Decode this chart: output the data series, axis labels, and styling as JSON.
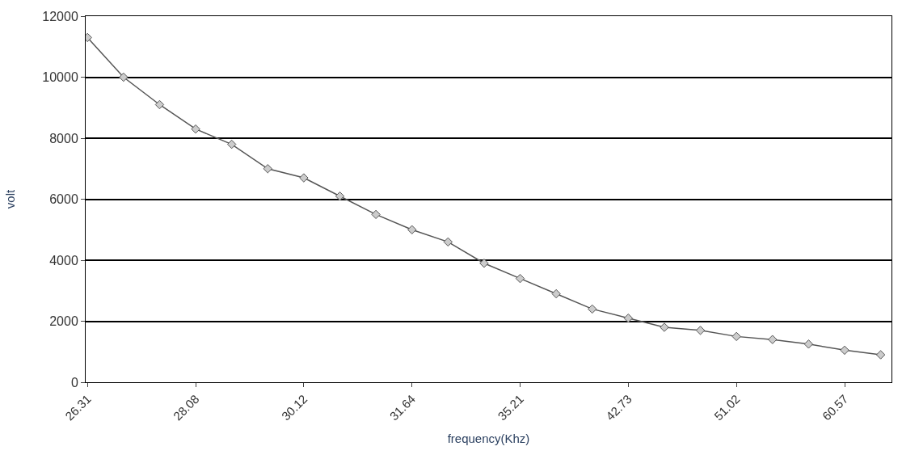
{
  "chart_data": {
    "type": "line",
    "xlabel": "frequency(Khz)",
    "ylabel": "volt",
    "categories": [
      "26.31",
      null,
      null,
      "28.08",
      null,
      null,
      "30.12",
      null,
      null,
      "31.64",
      null,
      null,
      "35.21",
      null,
      null,
      "42.73",
      null,
      null,
      "51.02",
      null,
      null,
      "60.57",
      null
    ],
    "series": [
      {
        "color": "#555555",
        "values": [
          11300,
          10000,
          9100,
          8300,
          7800,
          7000,
          6700,
          6100,
          5500,
          5000,
          4600,
          3900,
          3400,
          2900,
          2400,
          2100,
          1800,
          1700,
          1500,
          1400,
          1250,
          1050,
          900
        ]
      }
    ],
    "ylim": [
      0,
      12000
    ],
    "yticks": [
      0,
      2000,
      4000,
      6000,
      8000,
      10000,
      12000
    ],
    "grid": "y",
    "marker": "diamond",
    "line_style": "solid"
  }
}
